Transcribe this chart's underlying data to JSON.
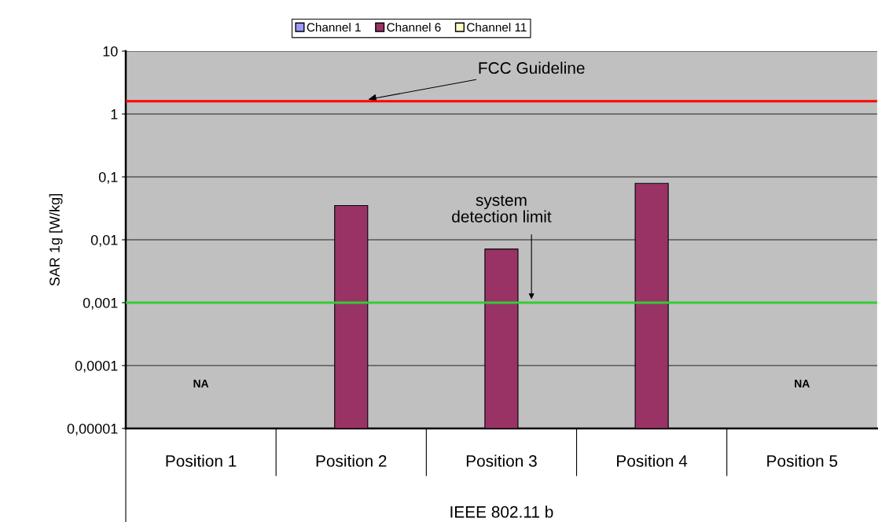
{
  "chart_data": {
    "type": "bar",
    "categories": [
      "Position 1",
      "Position 2",
      "Position 3",
      "Position 4",
      "Position 5"
    ],
    "xlabel": "IEEE 802.11 b",
    "ylabel": "SAR 1g [W/kg]",
    "series": [
      {
        "name": "Channel 1",
        "color": "#9999ff",
        "values": [
          null,
          null,
          null,
          null,
          null
        ]
      },
      {
        "name": "Channel 6",
        "color": "#993366",
        "values": [
          null,
          0.035,
          0.0071,
          0.079,
          null
        ]
      },
      {
        "name": "Channel 11",
        "color": "#ffffcc",
        "values": [
          null,
          null,
          null,
          null,
          null
        ]
      }
    ],
    "log": true,
    "ylim": [
      1e-05,
      10
    ],
    "yticks": [
      {
        "value": 1e-05,
        "label": "0,00001"
      },
      {
        "value": 0.0001,
        "label": "0,0001"
      },
      {
        "value": 0.001,
        "label": "0,001"
      },
      {
        "value": 0.01,
        "label": "0,01"
      },
      {
        "value": 0.1,
        "label": "0,1"
      },
      1,
      10
    ],
    "ref_lines": [
      {
        "axis": "y",
        "value": 1.6,
        "label": "FCC Guideline",
        "color": "#ff0000"
      },
      {
        "axis": "y",
        "value": 0.001,
        "color": "#33cc33"
      }
    ],
    "annotations": [
      "system detection limit",
      "NA",
      "NA"
    ],
    "grid": "y",
    "legend": "top"
  }
}
